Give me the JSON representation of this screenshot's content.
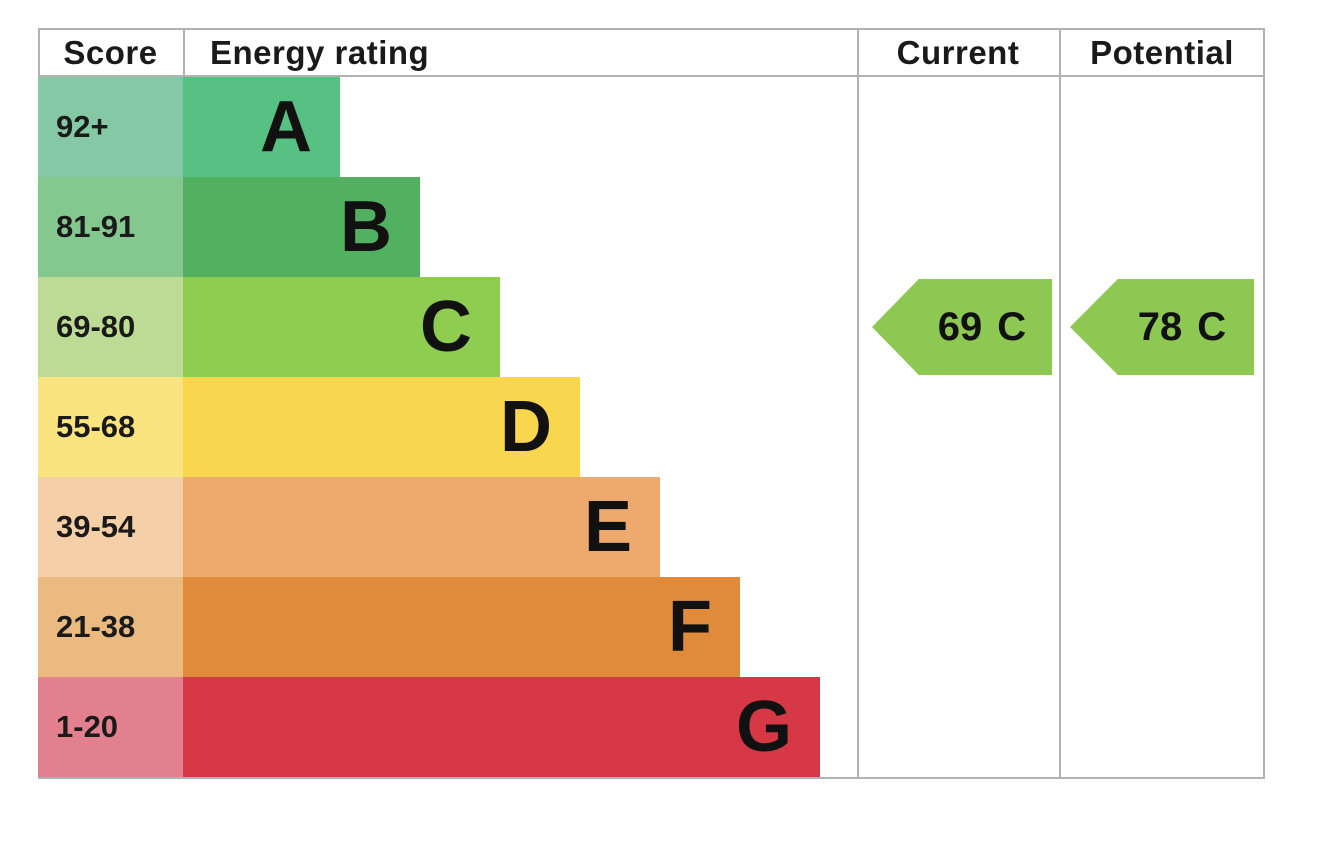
{
  "header": {
    "score": "Score",
    "energy_rating": "Energy rating",
    "current": "Current",
    "potential": "Potential"
  },
  "bands": [
    {
      "letter": "A",
      "score": "92+",
      "color": "#57c183",
      "score_bg": "#85c8a5"
    },
    {
      "letter": "B",
      "score": "81-91",
      "color": "#52b161",
      "score_bg": "#84c88f"
    },
    {
      "letter": "C",
      "score": "69-80",
      "color": "#8ecd4f",
      "score_bg": "#bddb94"
    },
    {
      "letter": "D",
      "score": "55-68",
      "color": "#f8d64d",
      "score_bg": "#fae47f"
    },
    {
      "letter": "E",
      "score": "39-54",
      "color": "#edaa6c",
      "score_bg": "#f4cfa7"
    },
    {
      "letter": "F",
      "score": "21-38",
      "color": "#e08a3c",
      "score_bg": "#ebba81"
    },
    {
      "letter": "G",
      "score": "1-20",
      "color": "#d63945",
      "score_bg": "#e2808f"
    }
  ],
  "current": {
    "value": "69",
    "letter": "C",
    "color": "#8cc852"
  },
  "potential": {
    "value": "78",
    "letter": "C",
    "color": "#8cc852"
  },
  "colors": {
    "border": "#b2b2b2",
    "text": "#1a1a1a"
  },
  "chart_data": {
    "type": "bar",
    "title": "Energy rating (EPC band chart)",
    "columns": [
      "Score",
      "Energy rating",
      "Current",
      "Potential"
    ],
    "categories": [
      "A",
      "B",
      "C",
      "D",
      "E",
      "F",
      "G"
    ],
    "score_ranges": [
      "92+",
      "81-91",
      "69-80",
      "55-68",
      "39-54",
      "21-38",
      "1-20"
    ],
    "bar_relative_lengths": [
      1,
      2,
      3,
      4,
      5,
      6,
      7
    ],
    "band_colors": [
      "#57c183",
      "#52b161",
      "#8ecd4f",
      "#f8d64d",
      "#edaa6c",
      "#e08a3c",
      "#d63945"
    ],
    "score_cell_colors": [
      "#85c8a5",
      "#84c88f",
      "#bddb94",
      "#fae47f",
      "#f4cfa7",
      "#ebba81",
      "#e2808f"
    ],
    "current": {
      "score": 69,
      "rating": "C"
    },
    "potential": {
      "score": 78,
      "rating": "C"
    },
    "legend_position": "none",
    "grid": false
  }
}
